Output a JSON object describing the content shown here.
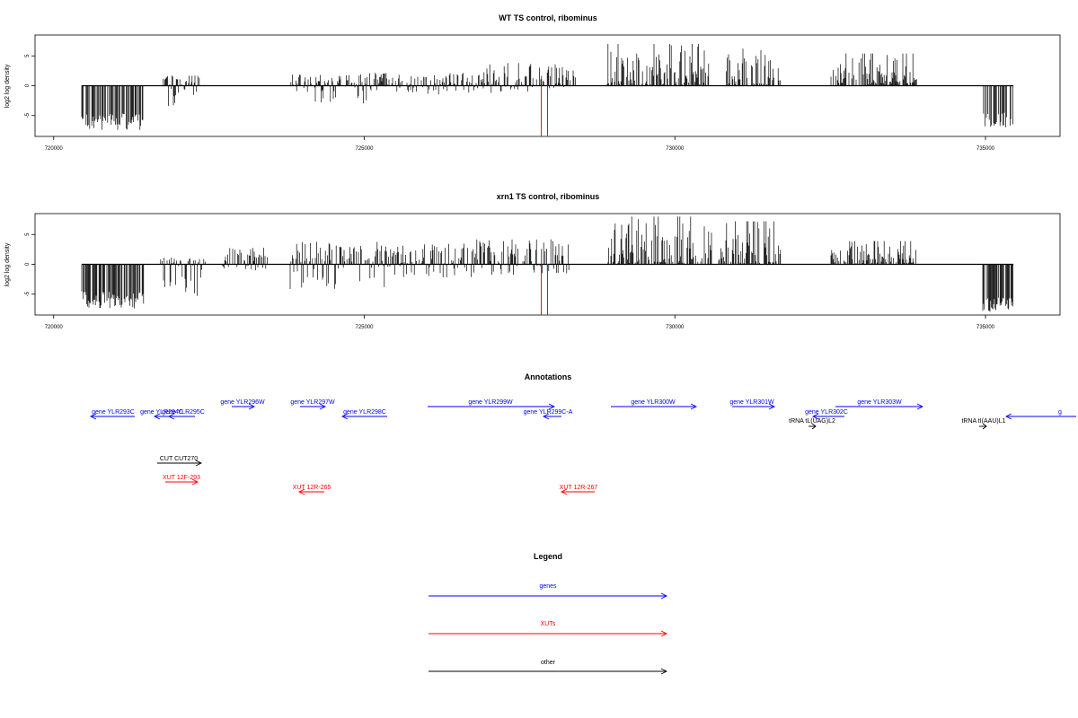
{
  "chart_data": [
    {
      "type": "bar",
      "title": "WT TS control, ribominus",
      "xlabel": "",
      "ylabel": "log2 log density",
      "xlim": [
        719700,
        736200
      ],
      "ylim": [
        -8.5,
        8.5
      ],
      "xticks": [
        720000,
        725000,
        730000,
        735000
      ],
      "yticks": [
        -5,
        0,
        5
      ],
      "grid": false,
      "regions": [
        {
          "start": 720450,
          "end": 721450,
          "min": -7.4,
          "max": -3.2
        },
        {
          "start": 721750,
          "end": 722350,
          "min": -3.6,
          "max": 1.8
        },
        {
          "start": 723800,
          "end": 725050,
          "min": -3.0,
          "max": 1.9
        },
        {
          "start": 725050,
          "end": 726800,
          "min": -1.5,
          "max": 2.2
        },
        {
          "start": 726800,
          "end": 728400,
          "min": -1.2,
          "max": 3.8
        },
        {
          "start": 728900,
          "end": 730600,
          "min": 0.2,
          "max": 7.0
        },
        {
          "start": 730800,
          "end": 731700,
          "min": 0.2,
          "max": 6.2
        },
        {
          "start": 732500,
          "end": 733900,
          "min": 0.2,
          "max": 5.4
        },
        {
          "start": 734950,
          "end": 735450,
          "min": -7.2,
          "max": -3.0
        }
      ],
      "highlight": {
        "color": "#ff0000",
        "x": [
          727850,
          727950
        ],
        "value": -8.5
      },
      "baseline": {
        "start": 720450,
        "end": 735450,
        "value": 0
      }
    },
    {
      "type": "bar",
      "title": "xrn1 TS control, ribominus",
      "xlabel": "",
      "ylabel": "log2 log density",
      "xlim": [
        719700,
        736200
      ],
      "ylim": [
        -8.5,
        8.5
      ],
      "xticks": [
        720000,
        725000,
        730000,
        735000
      ],
      "yticks": [
        -5,
        0,
        5
      ],
      "grid": false,
      "regions": [
        {
          "start": 720450,
          "end": 721450,
          "min": -7.4,
          "max": -3.0
        },
        {
          "start": 721700,
          "end": 722450,
          "min": -5.6,
          "max": 1.2
        },
        {
          "start": 722700,
          "end": 723500,
          "min": -1.0,
          "max": 2.8
        },
        {
          "start": 723800,
          "end": 725400,
          "min": -4.2,
          "max": 3.8
        },
        {
          "start": 725400,
          "end": 726800,
          "min": -2.2,
          "max": 3.5
        },
        {
          "start": 726800,
          "end": 728300,
          "min": -1.8,
          "max": 4.2
        },
        {
          "start": 728900,
          "end": 730600,
          "min": 0.2,
          "max": 8.0
        },
        {
          "start": 730700,
          "end": 731700,
          "min": 0.2,
          "max": 7.2
        },
        {
          "start": 732500,
          "end": 733900,
          "min": 0.2,
          "max": 3.9
        },
        {
          "start": 734950,
          "end": 735450,
          "min": -8.2,
          "max": -4.2
        }
      ],
      "highlight": {
        "color": "#ff0000",
        "x": [
          727850,
          727950
        ],
        "value": -8.5
      },
      "baseline": {
        "start": 720450,
        "end": 735450,
        "value": 0
      }
    }
  ],
  "annotations": {
    "title": "Annotations",
    "genes": [
      {
        "label": "gene YLR293C",
        "strand": "-"
      },
      {
        "label": "gene YLR294C",
        "strand": "-"
      },
      {
        "label": "gene YLR295C",
        "strand": "-"
      },
      {
        "label": "gene YLR296W",
        "strand": "+"
      },
      {
        "label": "gene YLR297W",
        "strand": "+"
      },
      {
        "label": "gene YLR298C",
        "strand": "-"
      },
      {
        "label": "gene YLR299W",
        "strand": "+"
      },
      {
        "label": "gene YLR299C-A",
        "strand": "-"
      },
      {
        "label": "gene YLR300W",
        "strand": "+"
      },
      {
        "label": "gene YLR301W",
        "strand": "+"
      },
      {
        "label": "gene YLR302C",
        "strand": "-"
      },
      {
        "label": "gene YLR303W",
        "strand": "+"
      },
      {
        "label": "g",
        "strand": "-"
      }
    ],
    "other": [
      {
        "label": "tRNA tL(UAG)L2",
        "strand": "+"
      },
      {
        "label": "tRNA tI(AAU)L1",
        "strand": "+"
      },
      {
        "label": "CUT CUT270",
        "strand": "+"
      }
    ],
    "xuts": [
      {
        "label": "XUT 12F-293",
        "strand": "+"
      },
      {
        "label": "XUT 12R-265",
        "strand": "-"
      },
      {
        "label": "XUT 12R-267",
        "strand": "-"
      }
    ]
  },
  "legend": {
    "title": "Legend",
    "items": [
      {
        "label": "genes",
        "color": "#0000ff"
      },
      {
        "label": "XUTs",
        "color": "#ff0000"
      },
      {
        "label": "other",
        "color": "#000000"
      }
    ]
  },
  "colors": {
    "genes": "#0000ff",
    "xuts": "#ff0000",
    "other": "#000000",
    "highlight": "#ff0000"
  }
}
